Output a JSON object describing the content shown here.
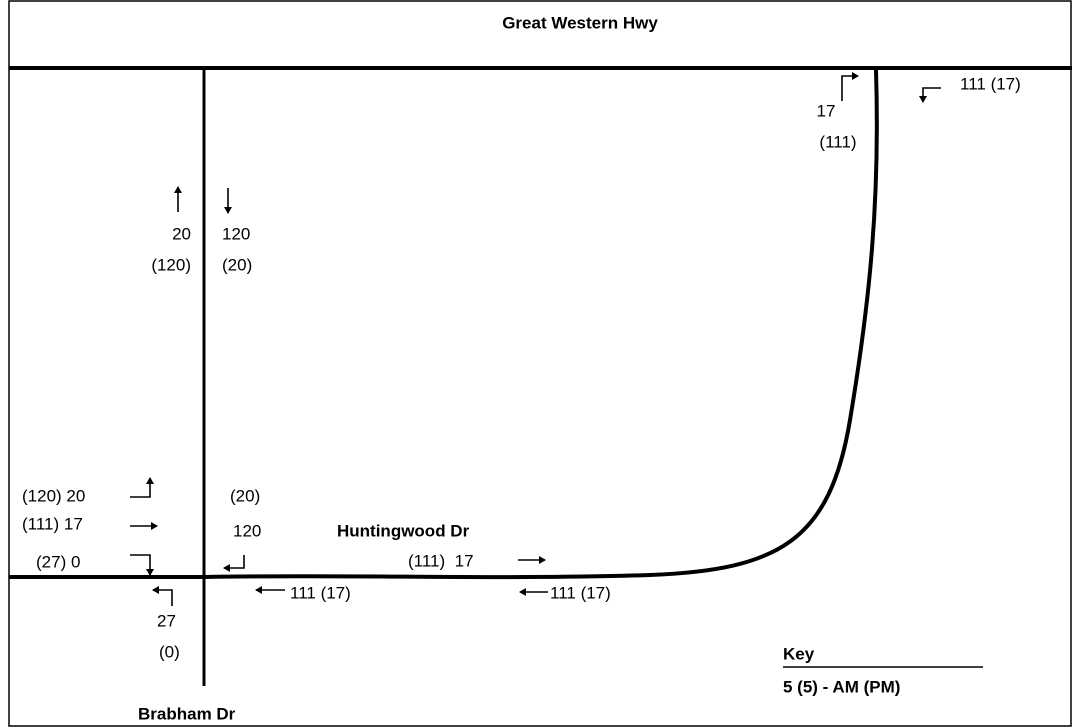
{
  "roads": {
    "top": "Great Western Hwy",
    "horizontal": "Huntingwood Dr",
    "vertical": "Brabham Dr"
  },
  "labels": [
    "111 (17)",
    "17",
    "(111)",
    "20",
    "(120)",
    "120",
    "(20)",
    "(120) 20",
    "(111) 17",
    "(27) 0",
    "(20)",
    "120",
    "(111)  17",
    "111 (17)",
    "111 (17)",
    "27",
    "(0)"
  ],
  "key": {
    "title": "Key",
    "text": "5 (5) - AM (PM)"
  }
}
